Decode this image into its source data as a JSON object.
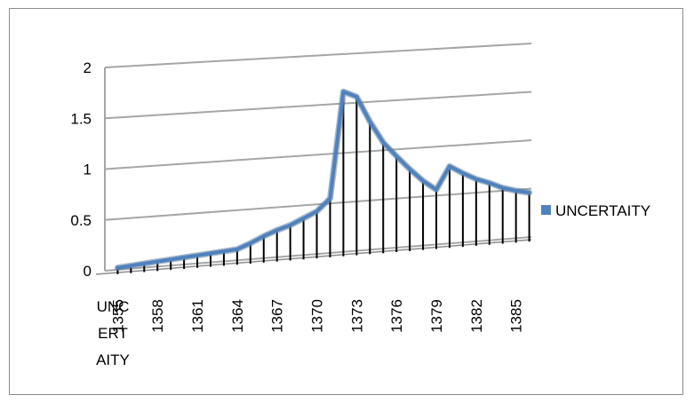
{
  "chart_data": {
    "type": "line",
    "title": "",
    "xlabel": "UNCERTAITY",
    "xlabel_lines": [
      "UNC",
      "ERT",
      "AITY"
    ],
    "ylabel": "",
    "ylim": [
      0,
      2
    ],
    "y_ticks": [
      "0",
      "0.5",
      "1",
      "1.5",
      "2"
    ],
    "x": [
      1355,
      1356,
      1357,
      1358,
      1359,
      1360,
      1361,
      1362,
      1363,
      1364,
      1365,
      1366,
      1367,
      1368,
      1369,
      1370,
      1371,
      1372,
      1373,
      1374,
      1375,
      1376,
      1377,
      1378,
      1379,
      1380,
      1381,
      1382,
      1383,
      1384,
      1385,
      1386
    ],
    "x_tick_labels": [
      "1355",
      "1358",
      "1361",
      "1364",
      "1367",
      "1370",
      "1373",
      "1376",
      "1379",
      "1382",
      "1385"
    ],
    "series": [
      {
        "name": "UNCERTAITY",
        "color": "#4f81bd",
        "values": [
          0.02,
          0.03,
          0.04,
          0.05,
          0.06,
          0.07,
          0.08,
          0.09,
          0.1,
          0.11,
          0.16,
          0.22,
          0.27,
          0.31,
          0.37,
          0.43,
          0.55,
          1.62,
          1.56,
          1.3,
          1.08,
          0.93,
          0.79,
          0.66,
          0.56,
          0.79,
          0.71,
          0.64,
          0.59,
          0.53,
          0.49,
          0.46
        ]
      }
    ],
    "grid": true,
    "legend_position": "right",
    "drop_lines": true
  }
}
